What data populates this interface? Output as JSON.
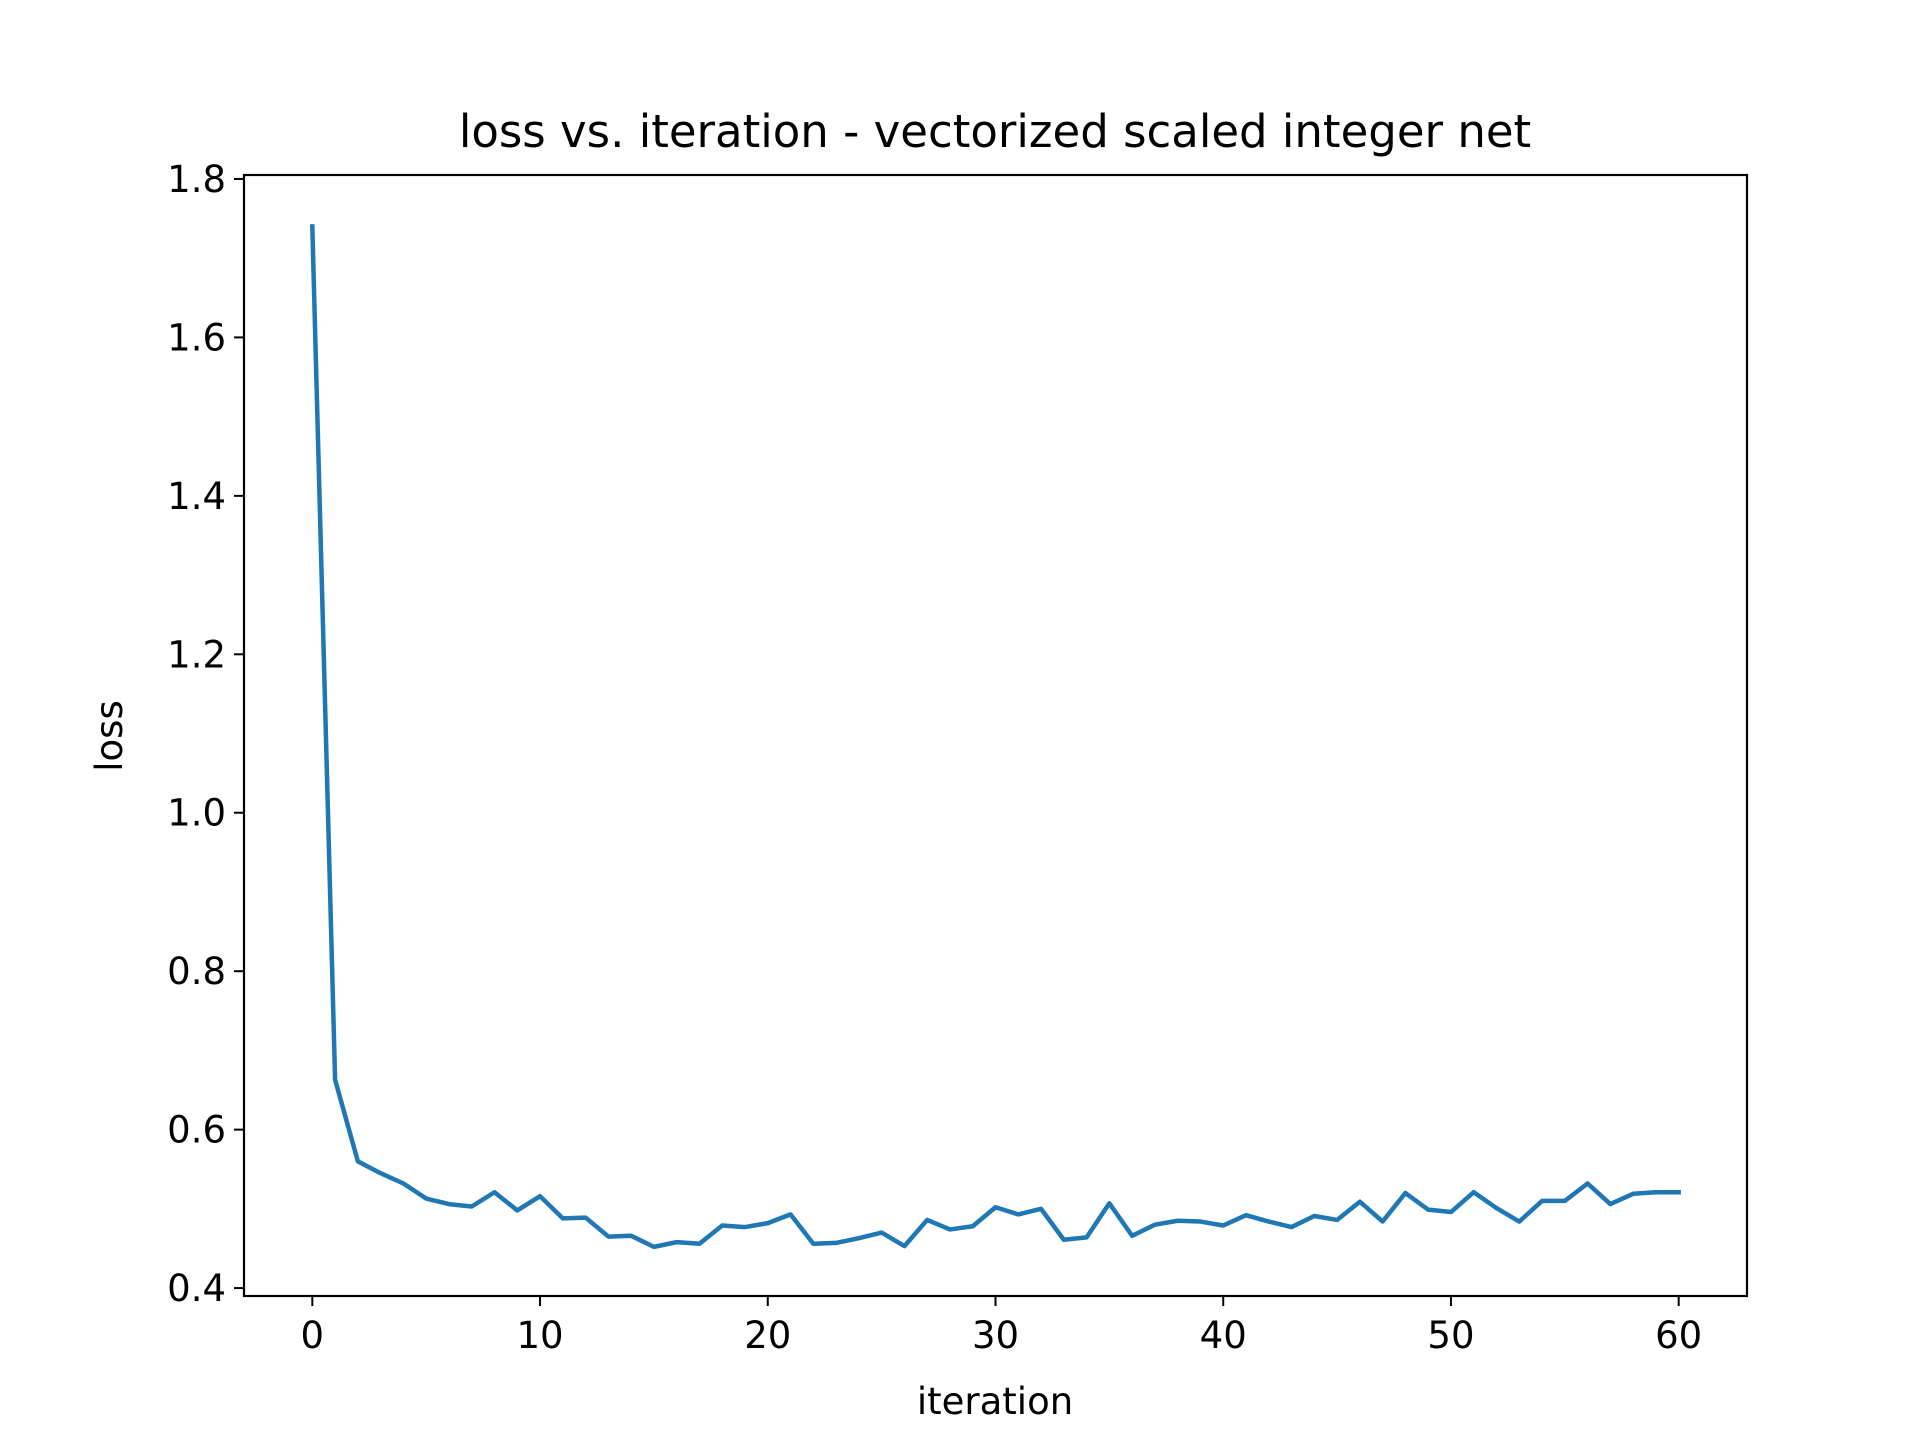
{
  "chart_data": {
    "type": "line",
    "title": "loss vs. iteration - vectorized scaled integer net",
    "xlabel": "iteration",
    "ylabel": "loss",
    "xlim": [
      -3,
      63
    ],
    "ylim": [
      0.39,
      1.805
    ],
    "xticks": [
      0,
      10,
      20,
      30,
      40,
      50,
      60
    ],
    "yticks": [
      0.4,
      0.6,
      0.8,
      1.0,
      1.2,
      1.4,
      1.6,
      1.8
    ],
    "xtick_labels": [
      "0",
      "10",
      "20",
      "30",
      "40",
      "50",
      "60"
    ],
    "ytick_labels": [
      "0.4",
      "0.6",
      "0.8",
      "1.0",
      "1.2",
      "1.4",
      "1.6",
      "1.8"
    ],
    "grid": false,
    "series": [
      {
        "color": "#1f77b4",
        "x": [
          0,
          1,
          2,
          3,
          4,
          5,
          6,
          7,
          8,
          9,
          10,
          11,
          12,
          13,
          14,
          15,
          16,
          17,
          18,
          19,
          20,
          21,
          22,
          23,
          24,
          25,
          26,
          27,
          28,
          29,
          30,
          31,
          32,
          33,
          34,
          35,
          36,
          37,
          38,
          39,
          40,
          41,
          42,
          43,
          44,
          45,
          46,
          47,
          48,
          49,
          50,
          51,
          52,
          53,
          54,
          55,
          56,
          57,
          58,
          59,
          60
        ],
        "y": [
          1.74,
          0.663,
          0.56,
          0.545,
          0.532,
          0.513,
          0.506,
          0.503,
          0.521,
          0.498,
          0.516,
          0.488,
          0.489,
          0.465,
          0.466,
          0.452,
          0.458,
          0.456,
          0.479,
          0.477,
          0.482,
          0.493,
          0.456,
          0.457,
          0.463,
          0.47,
          0.453,
          0.486,
          0.474,
          0.478,
          0.502,
          0.493,
          0.5,
          0.461,
          0.464,
          0.507,
          0.466,
          0.48,
          0.485,
          0.484,
          0.479,
          0.492,
          0.484,
          0.477,
          0.491,
          0.486,
          0.509,
          0.484,
          0.52,
          0.499,
          0.496,
          0.521,
          0.501,
          0.484,
          0.51,
          0.51,
          0.532,
          0.506,
          0.519,
          0.521,
          0.521
        ]
      }
    ]
  }
}
